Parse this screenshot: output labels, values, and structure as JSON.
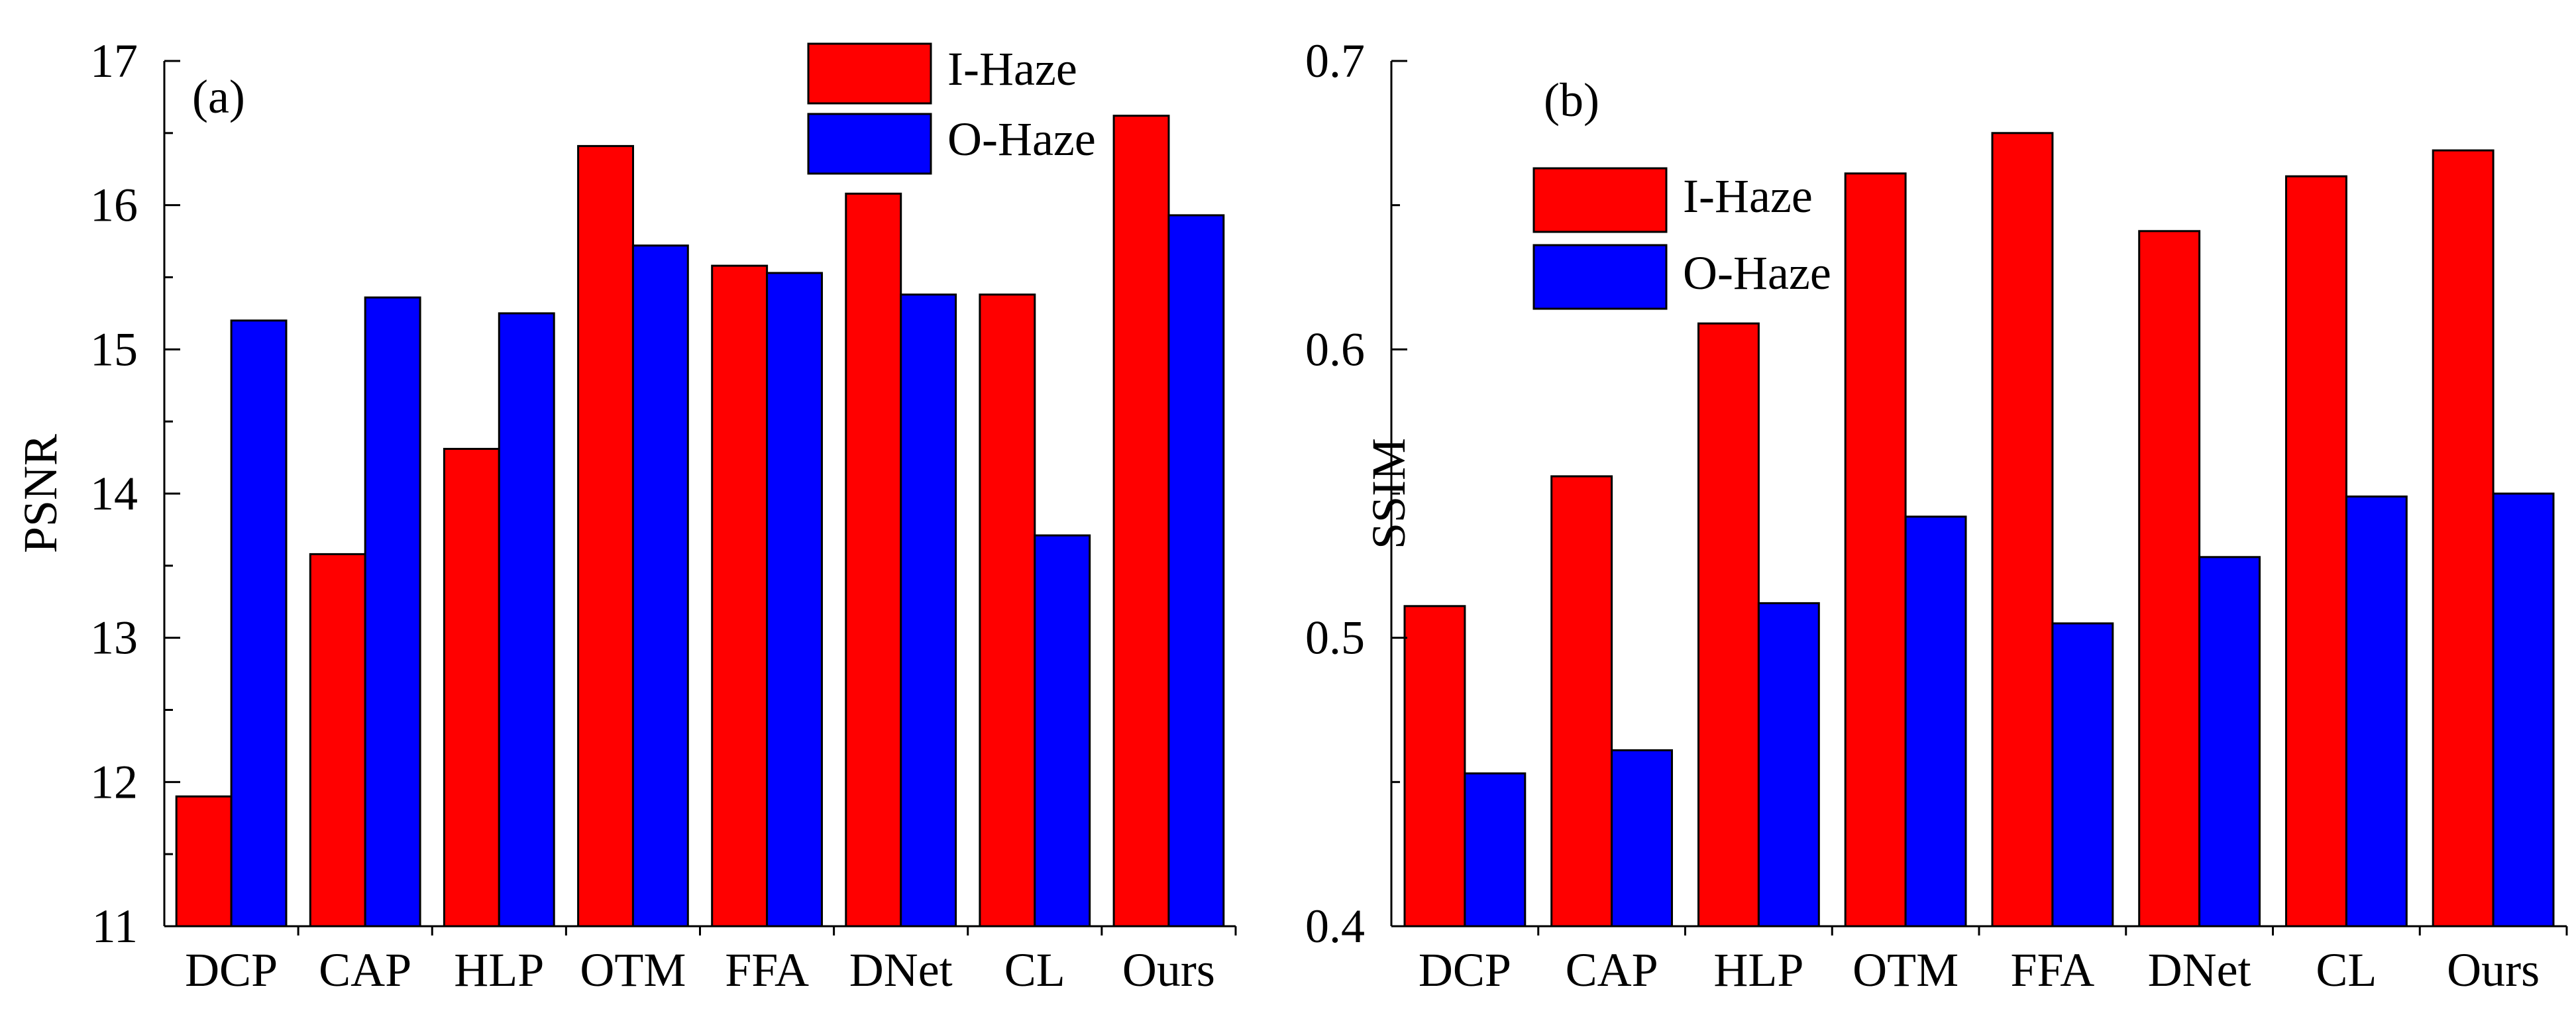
{
  "chart_data": [
    {
      "type": "bar",
      "panel": "(a)",
      "ylabel": "PSNR",
      "xlabel": "",
      "ylim": [
        11,
        17
      ],
      "yticks": [
        11,
        12,
        13,
        14,
        15,
        16,
        17
      ],
      "categories": [
        "DCP",
        "CAP",
        "HLP",
        "OTM",
        "FFA",
        "DNet",
        "CL",
        "Ours"
      ],
      "legend_position": "top-right",
      "series": [
        {
          "name": "I-Haze",
          "color": "#ff0000",
          "values": [
            11.9,
            13.58,
            14.31,
            16.41,
            15.58,
            16.08,
            15.38,
            16.62
          ]
        },
        {
          "name": "O-Haze",
          "color": "#0000ff",
          "values": [
            15.2,
            15.36,
            15.25,
            15.72,
            15.53,
            15.38,
            13.71,
            15.93
          ]
        }
      ]
    },
    {
      "type": "bar",
      "panel": "(b)",
      "ylabel": "SSIM",
      "xlabel": "",
      "ylim": [
        0.4,
        0.7
      ],
      "yticks": [
        "0.4",
        "0.5",
        "0.6",
        "0.7"
      ],
      "categories": [
        "DCP",
        "CAP",
        "HLP",
        "OTM",
        "FFA",
        "DNet",
        "CL",
        "Ours"
      ],
      "legend_position": "top-left",
      "series": [
        {
          "name": "I-Haze",
          "color": "#ff0000",
          "values": [
            0.511,
            0.556,
            0.609,
            0.661,
            0.675,
            0.641,
            0.66,
            0.669
          ]
        },
        {
          "name": "O-Haze",
          "color": "#0000ff",
          "values": [
            0.453,
            0.461,
            0.512,
            0.542,
            0.505,
            0.528,
            0.549,
            0.55
          ]
        }
      ]
    }
  ]
}
